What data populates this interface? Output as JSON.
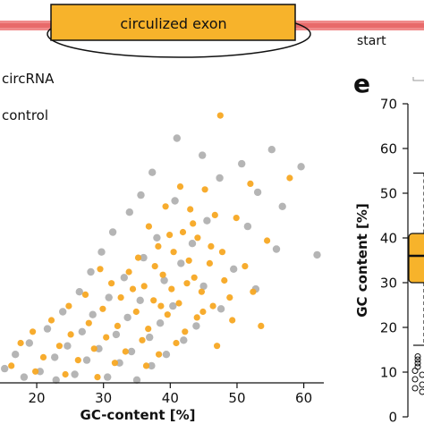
{
  "exon_diagram": {
    "label": "circulized exon",
    "start_label": "start",
    "line_color": "#e86a6a",
    "box_color": "#f7b32b"
  },
  "panel_letter": "e",
  "chart_data": [
    {
      "type": "scatter",
      "xlabel": "GC-content [%]",
      "ylabel": "",
      "x_ticks": [
        20,
        30,
        40,
        50,
        60
      ],
      "xlim": [
        14.5,
        63
      ],
      "ylim": [
        0,
        1
      ],
      "legend": [
        "circRNA",
        "control"
      ],
      "legend_placement": "top-left (partially cropped)",
      "series": [
        {
          "name": "circRNA",
          "color": "#f7a823",
          "points": [
            [
              47.5,
              0.94
            ],
            [
              57.9,
              0.72
            ],
            [
              52.0,
              0.7
            ],
            [
              41.5,
              0.69
            ],
            [
              45.2,
              0.68
            ],
            [
              39.3,
              0.62
            ],
            [
              43.0,
              0.61
            ],
            [
              46.7,
              0.59
            ],
            [
              49.9,
              0.58
            ],
            [
              36.8,
              0.55
            ],
            [
              41.9,
              0.53
            ],
            [
              44.1,
              0.51
            ],
            [
              54.5,
              0.5
            ],
            [
              38.2,
              0.48
            ],
            [
              40.5,
              0.46
            ],
            [
              47.8,
              0.46
            ],
            [
              35.2,
              0.44
            ],
            [
              42.8,
              0.43
            ],
            [
              45.9,
              0.42
            ],
            [
              51.2,
              0.41
            ],
            [
              29.5,
              0.4
            ],
            [
              33.8,
              0.39
            ],
            [
              38.9,
              0.38
            ],
            [
              43.6,
              0.37
            ],
            [
              48.1,
              0.36
            ],
            [
              31.2,
              0.35
            ],
            [
              36.1,
              0.34
            ],
            [
              40.2,
              0.33
            ],
            [
              44.7,
              0.32
            ],
            [
              52.4,
              0.32
            ],
            [
              27.3,
              0.31
            ],
            [
              32.6,
              0.3
            ],
            [
              37.5,
              0.29
            ],
            [
              41.3,
              0.28
            ],
            [
              46.4,
              0.27
            ],
            [
              24.8,
              0.27
            ],
            [
              29.9,
              0.26
            ],
            [
              34.9,
              0.25
            ],
            [
              39.6,
              0.24
            ],
            [
              44.0,
              0.23
            ],
            [
              49.3,
              0.22
            ],
            [
              22.2,
              0.22
            ],
            [
              27.8,
              0.21
            ],
            [
              32.1,
              0.2
            ],
            [
              36.7,
              0.19
            ],
            [
              42.2,
              0.18
            ],
            [
              53.6,
              0.2
            ],
            [
              19.4,
              0.18
            ],
            [
              25.1,
              0.17
            ],
            [
              30.4,
              0.16
            ],
            [
              35.8,
              0.15
            ],
            [
              40.9,
              0.14
            ],
            [
              47.0,
              0.13
            ],
            [
              17.6,
              0.14
            ],
            [
              23.4,
              0.13
            ],
            [
              28.6,
              0.12
            ],
            [
              33.3,
              0.11
            ],
            [
              38.3,
              0.1
            ],
            [
              21.0,
              0.09
            ],
            [
              26.2,
              0.08
            ],
            [
              31.7,
              0.07
            ],
            [
              36.4,
              0.06
            ],
            [
              16.2,
              0.06
            ],
            [
              19.8,
              0.04
            ],
            [
              24.3,
              0.03
            ],
            [
              29.1,
              0.02
            ],
            [
              43.4,
              0.56
            ],
            [
              39.9,
              0.52
            ],
            [
              46.1,
              0.48
            ],
            [
              37.7,
              0.41
            ],
            [
              42.5,
              0.35
            ],
            [
              34.4,
              0.33
            ],
            [
              48.9,
              0.3
            ],
            [
              38.6,
              0.27
            ],
            [
              44.9,
              0.25
            ]
          ]
        },
        {
          "name": "control",
          "color": "#5a5a5a",
          "points": [
            [
              41.0,
              0.86
            ],
            [
              55.2,
              0.82
            ],
            [
              44.8,
              0.8
            ],
            [
              50.7,
              0.77
            ],
            [
              37.3,
              0.74
            ],
            [
              59.6,
              0.76
            ],
            [
              47.4,
              0.72
            ],
            [
              53.1,
              0.67
            ],
            [
              62.0,
              0.45
            ],
            [
              35.6,
              0.66
            ],
            [
              40.7,
              0.64
            ],
            [
              56.8,
              0.62
            ],
            [
              33.9,
              0.6
            ],
            [
              45.5,
              0.57
            ],
            [
              51.6,
              0.55
            ],
            [
              31.4,
              0.53
            ],
            [
              38.0,
              0.51
            ],
            [
              43.3,
              0.49
            ],
            [
              55.9,
              0.47
            ],
            [
              29.7,
              0.46
            ],
            [
              36.0,
              0.44
            ],
            [
              41.6,
              0.42
            ],
            [
              49.5,
              0.4
            ],
            [
              28.1,
              0.39
            ],
            [
              33.1,
              0.37
            ],
            [
              39.1,
              0.36
            ],
            [
              45.0,
              0.34
            ],
            [
              52.8,
              0.33
            ],
            [
              26.4,
              0.32
            ],
            [
              30.8,
              0.3
            ],
            [
              35.5,
              0.29
            ],
            [
              40.4,
              0.27
            ],
            [
              47.6,
              0.26
            ],
            [
              23.9,
              0.25
            ],
            [
              28.4,
              0.24
            ],
            [
              33.6,
              0.23
            ],
            [
              38.5,
              0.21
            ],
            [
              43.9,
              0.2
            ],
            [
              21.6,
              0.19
            ],
            [
              26.8,
              0.18
            ],
            [
              31.9,
              0.17
            ],
            [
              36.9,
              0.16
            ],
            [
              42.0,
              0.15
            ],
            [
              18.9,
              0.14
            ],
            [
              24.6,
              0.13
            ],
            [
              29.3,
              0.12
            ],
            [
              34.2,
              0.11
            ],
            [
              39.4,
              0.1
            ],
            [
              16.8,
              0.1
            ],
            [
              22.7,
              0.09
            ],
            [
              27.5,
              0.08
            ],
            [
              32.4,
              0.07
            ],
            [
              37.2,
              0.06
            ],
            [
              15.2,
              0.05
            ],
            [
              20.5,
              0.04
            ],
            [
              25.7,
              0.03
            ],
            [
              30.6,
              0.02
            ],
            [
              35.0,
              0.01
            ],
            [
              18.1,
              0.02
            ],
            [
              22.9,
              0.01
            ]
          ]
        }
      ]
    },
    {
      "type": "box",
      "panel": "e",
      "ylabel": "GC content [%]",
      "y_ticks": [
        0,
        10,
        20,
        30,
        40,
        50,
        60,
        70
      ],
      "ylim": [
        0,
        70
      ],
      "box": {
        "color": "#f7b32b",
        "q1": 30,
        "median": 36,
        "q3": 41,
        "whisker_low": 16,
        "whisker_high": 54.5,
        "outliers": [
          13.5,
          12.8,
          12.0,
          11.2,
          10.3,
          9.4,
          8.4,
          7.2,
          6.4,
          5.6
        ]
      }
    }
  ]
}
